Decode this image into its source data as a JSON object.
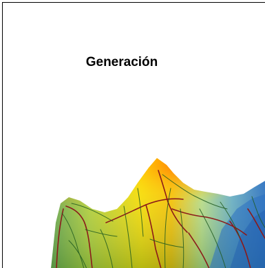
{
  "figure": {
    "title": "Generación",
    "colors": {
      "peak": "#ff7a00",
      "mid": "#ffd400",
      "low": "#7cc23a",
      "valley": "#2a78c8",
      "road": "#8b1a1a",
      "path": "#1f5a1f"
    }
  }
}
